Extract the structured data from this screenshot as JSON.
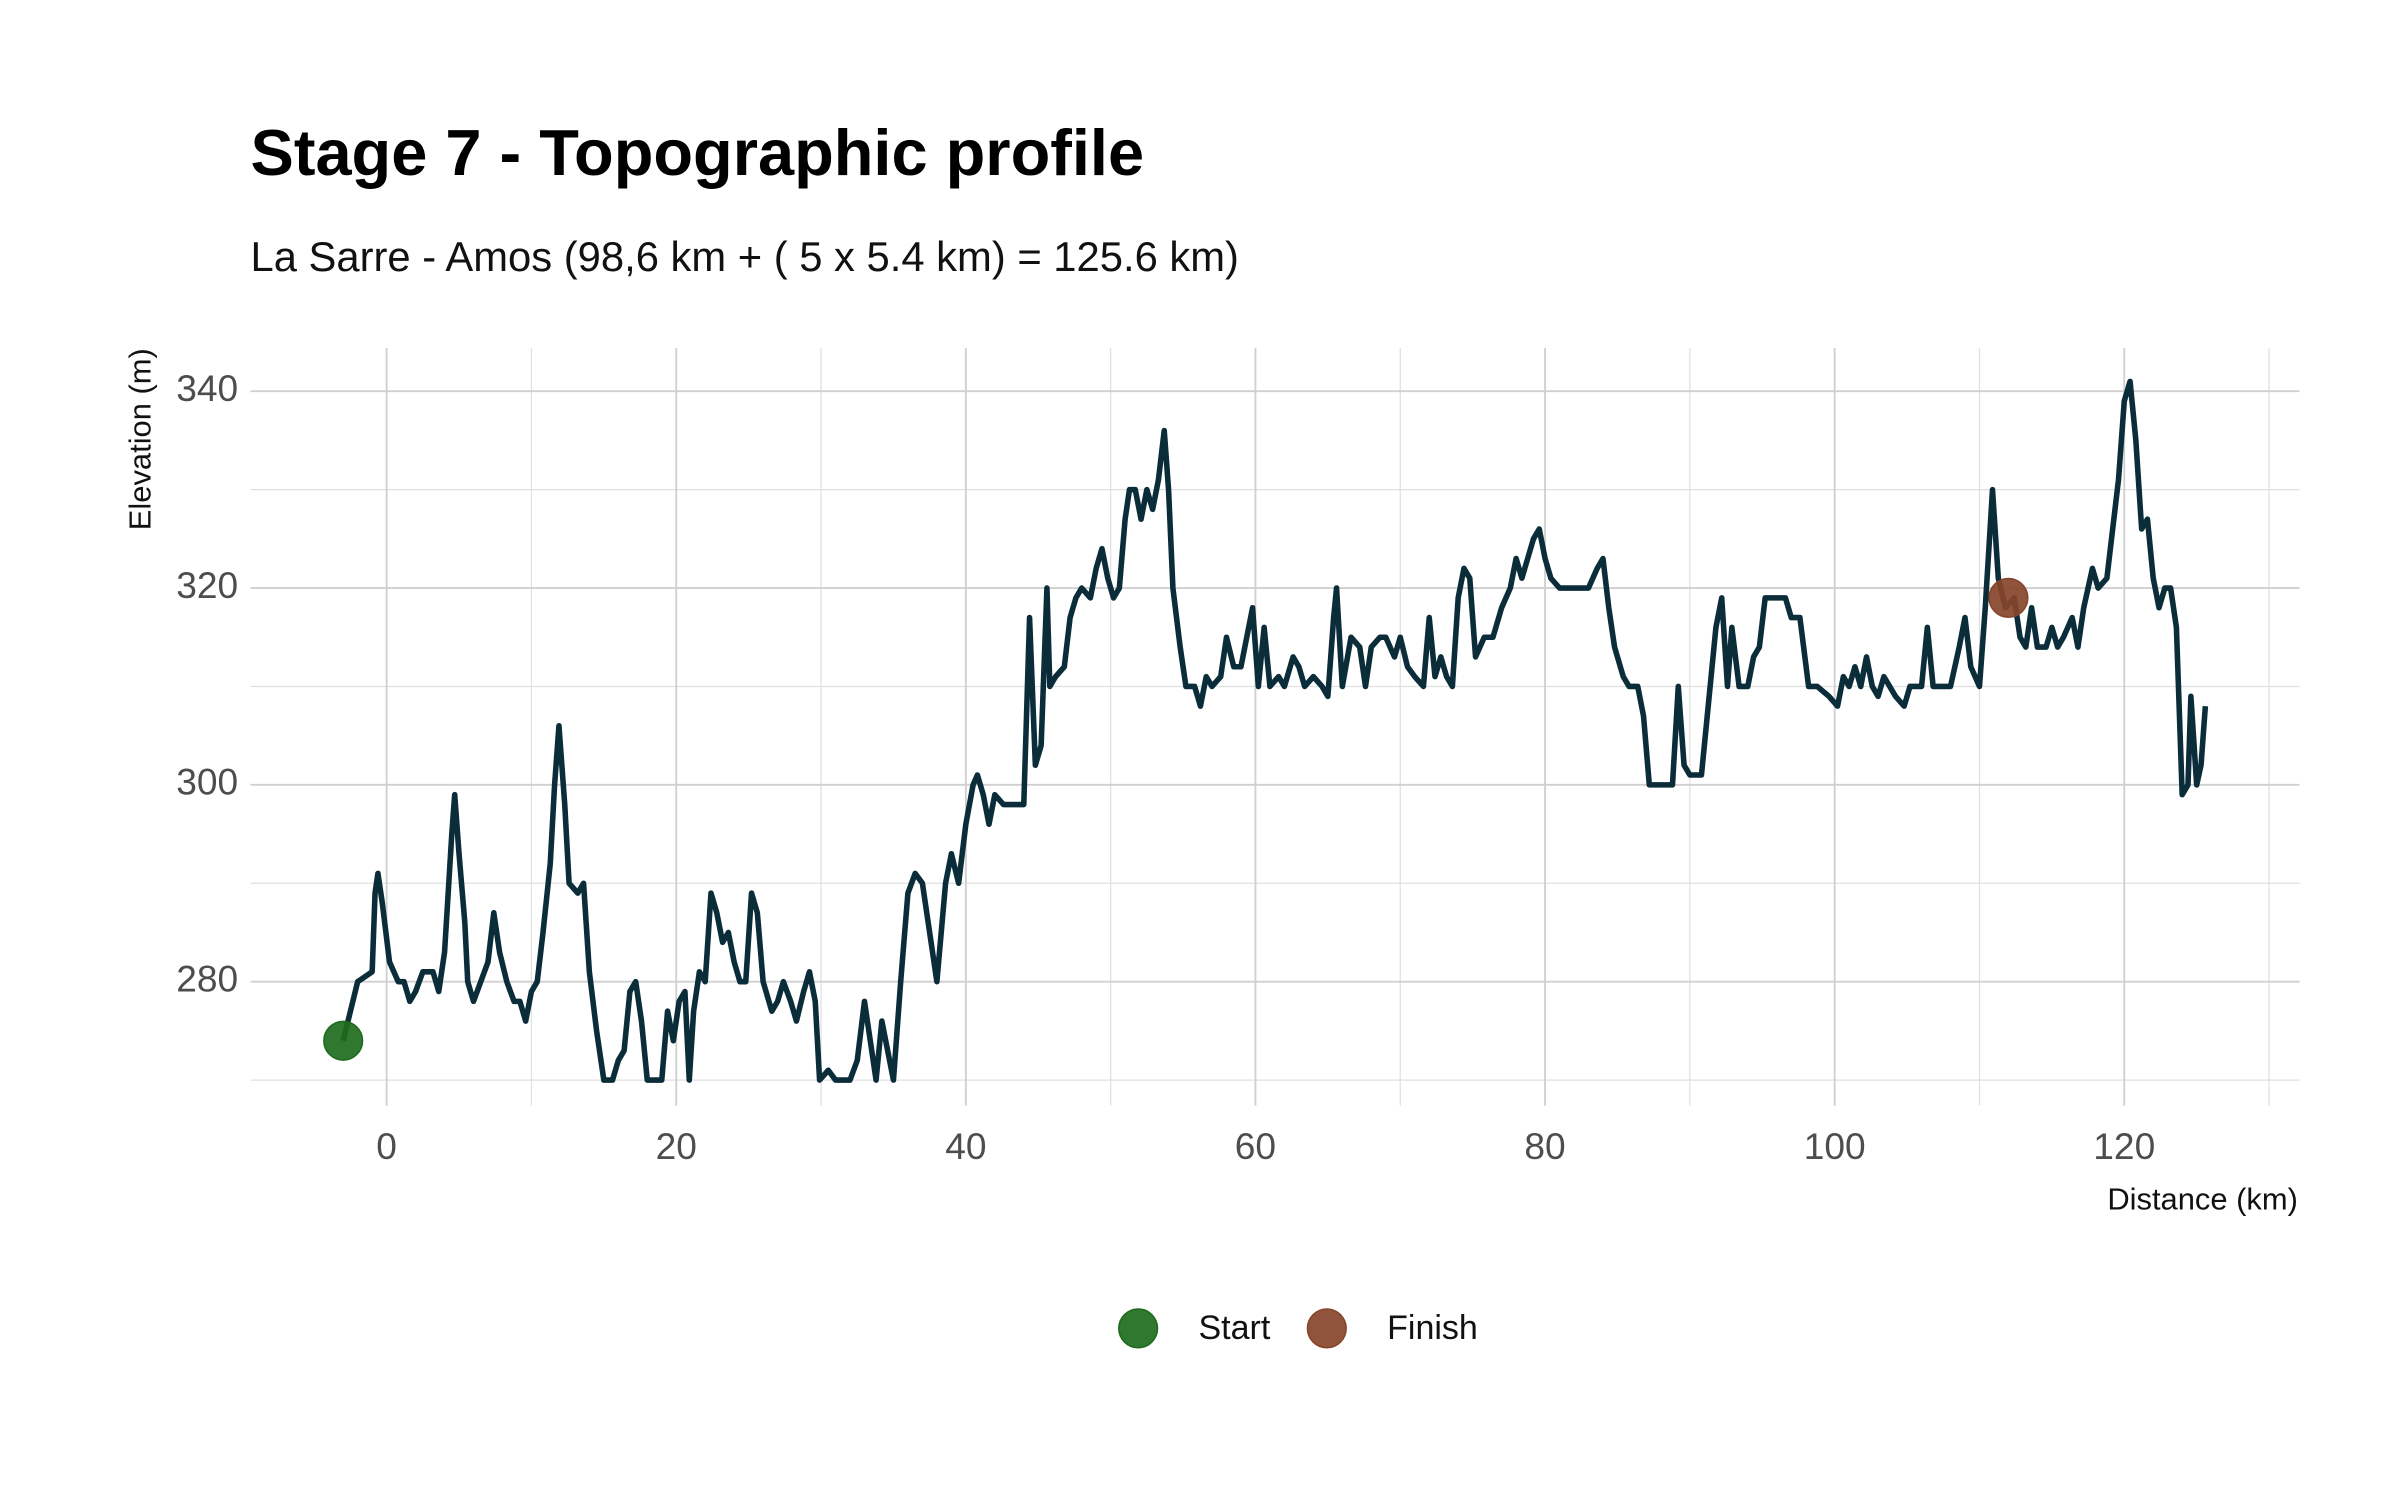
{
  "chart_data": {
    "type": "line",
    "title": "Stage 7 - Topographic profile",
    "subtitle": "La Sarre - Amos (98,6 km + ( 5 x 5.4 km) = 125.6 km)",
    "x_label": "Distance (km)",
    "y_label": "Elevation (m)",
    "color": "#0b2d3a",
    "xlim": [
      -9.4,
      132.1
    ],
    "ylim": [
      267.4,
      344.4
    ],
    "xticks": [
      0,
      20,
      40,
      60,
      80,
      100,
      120
    ],
    "yticks": [
      280,
      300,
      320,
      340
    ],
    "x_minor_ticks": [
      10,
      30,
      50,
      70,
      90,
      110,
      130
    ],
    "y_minor_ticks": [
      270,
      290,
      310,
      330
    ],
    "grid": true,
    "legend_position": "bottom",
    "x": [
      -3,
      -2.5,
      -2,
      -1,
      -0.8,
      -0.6,
      -0.3,
      0.2,
      0.8,
      1.2,
      1.6,
      2,
      2.5,
      3.2,
      3.6,
      4,
      4.5,
      4.7,
      5,
      5.4,
      5.6,
      6,
      6.5,
      7,
      7.4,
      7.8,
      8.3,
      8.8,
      9.2,
      9.6,
      10,
      10.4,
      10.8,
      11.3,
      11.6,
      11.9,
      12.3,
      12.6,
      13.2,
      13.6,
      14,
      14.5,
      15,
      15.6,
      16,
      16.4,
      16.8,
      17.2,
      17.6,
      18,
      19,
      19.4,
      19.8,
      20.2,
      20.6,
      20.9,
      21.2,
      21.6,
      22,
      22.4,
      22.8,
      23.2,
      23.6,
      24,
      24.4,
      24.8,
      25.2,
      25.6,
      26,
      26.6,
      27,
      27.4,
      27.9,
      28.3,
      28.8,
      29.2,
      29.6,
      29.9,
      30.5,
      31,
      32,
      32.5,
      33,
      33.4,
      33.8,
      34.2,
      34.6,
      35,
      35.5,
      36,
      36.5,
      37,
      37.5,
      38,
      38.6,
      39,
      39.5,
      40,
      40.5,
      40.8,
      41.2,
      41.6,
      42,
      42.6,
      43.2,
      43.6,
      44,
      44.4,
      44.8,
      45.2,
      45.6,
      45.8,
      46.2,
      46.8,
      47.2,
      47.6,
      48,
      48.6,
      49,
      49.4,
      49.8,
      50.2,
      50.6,
      51,
      51.3,
      51.7,
      52.1,
      52.5,
      52.9,
      53.3,
      53.7,
      54,
      54.3,
      54.8,
      55.2,
      55.8,
      56.2,
      56.6,
      57,
      57.6,
      58,
      58.5,
      59,
      59.4,
      59.8,
      60.2,
      60.6,
      61,
      61.6,
      62,
      62.6,
      63,
      63.4,
      64,
      64.6,
      65,
      65.4,
      65.6,
      66,
      66.6,
      67.2,
      67.6,
      68,
      68.6,
      69,
      69.6,
      70,
      70.5,
      71,
      71.6,
      72,
      72.4,
      72.8,
      73.2,
      73.6,
      74,
      74.4,
      74.8,
      75.2,
      75.8,
      76.4,
      77,
      77.6,
      78,
      78.4,
      78.8,
      79.2,
      79.6,
      80,
      80.4,
      81,
      82,
      83,
      83.6,
      84,
      84.4,
      84.8,
      85.4,
      85.8,
      86.4,
      86.8,
      87.2,
      88,
      88.8,
      89.2,
      89.6,
      90,
      90.8,
      91.4,
      91.8,
      92.2,
      92.6,
      92.9,
      93.4,
      94,
      94.4,
      94.8,
      95.2,
      95.8,
      96.6,
      97,
      97.6,
      98.2,
      98.8,
      99.6,
      100.2,
      100.6,
      101,
      101.4,
      101.8,
      102.2,
      102.6,
      103,
      103.4,
      103.8,
      104.2,
      104.8,
      105.2,
      105.6,
      106,
      106.4,
      106.8,
      107.2,
      107.6,
      108,
      108.6,
      109,
      109.4,
      110,
      110.4,
      110.9,
      111.3,
      111.8,
      112.4,
      112.8,
      113.2,
      113.6,
      114,
      114.6,
      115,
      115.4,
      115.8,
      116.4,
      116.8,
      117.2,
      117.8,
      118.2,
      118.8,
      119.2,
      119.6,
      120,
      120.4,
      120.8,
      121.2,
      121.6,
      122,
      122.4,
      122.8,
      123.2,
      123.6,
      124,
      124.4,
      124.6,
      125,
      125.3,
      125.6
    ],
    "values": [
      274,
      277,
      280,
      281,
      289,
      291,
      288,
      282,
      280,
      280,
      278,
      279,
      281,
      281,
      279,
      283,
      295,
      299,
      293,
      286,
      280,
      278,
      280,
      282,
      287,
      283,
      280,
      278,
      278,
      276,
      279,
      280,
      285,
      292,
      300,
      306,
      298,
      290,
      289,
      290,
      281,
      275,
      270,
      270,
      272,
      273,
      279,
      280,
      276,
      270,
      270,
      277,
      274,
      278,
      279,
      270,
      277,
      281,
      280,
      289,
      287,
      284,
      285,
      282,
      280,
      280,
      289,
      287,
      280,
      277,
      278,
      280,
      278,
      276,
      279,
      281,
      278,
      270,
      271,
      270,
      270,
      272,
      278,
      274,
      270,
      276,
      273,
      270,
      280,
      289,
      291,
      290,
      285,
      280,
      290,
      293,
      290,
      296,
      300,
      301,
      299,
      296,
      299,
      298,
      298,
      298,
      298,
      317,
      302,
      304,
      320,
      310,
      311,
      312,
      317,
      319,
      320,
      319,
      322,
      324,
      321,
      319,
      320,
      327,
      330,
      330,
      327,
      330,
      328,
      331,
      336,
      330,
      320,
      314,
      310,
      310,
      308,
      311,
      310,
      311,
      315,
      312,
      312,
      315,
      318,
      310,
      316,
      310,
      311,
      310,
      313,
      312,
      310,
      311,
      310,
      309,
      317,
      320,
      310,
      315,
      314,
      310,
      314,
      315,
      315,
      313,
      315,
      312,
      311,
      310,
      317,
      311,
      313,
      311,
      310,
      319,
      322,
      321,
      313,
      315,
      315,
      318,
      320,
      323,
      321,
      323,
      325,
      326,
      323,
      321,
      320,
      320,
      320,
      322,
      323,
      318,
      314,
      311,
      310,
      310,
      307,
      300,
      300,
      300,
      310,
      302,
      301,
      301,
      310,
      316,
      319,
      310,
      316,
      310,
      310,
      313,
      314,
      319,
      319,
      319,
      317,
      317,
      310,
      310,
      309,
      308,
      311,
      310,
      312,
      310,
      313,
      310,
      309,
      311,
      310,
      309,
      308,
      310,
      310,
      310,
      316,
      310,
      310,
      310,
      310,
      314,
      317,
      312,
      310,
      318,
      330,
      321,
      318,
      319,
      315,
      314,
      318,
      314,
      314,
      316,
      314,
      315,
      317,
      314,
      318,
      322,
      320,
      321,
      326,
      331,
      339,
      341,
      335,
      326,
      327,
      321,
      318,
      320,
      320,
      316,
      299,
      300,
      309,
      300,
      302,
      308
    ],
    "points": [
      {
        "name": "Start",
        "x": -3,
        "y": 274,
        "color": "#1e6b1e"
      },
      {
        "name": "Finish",
        "x": 112,
        "y": 319,
        "color": "#86452a"
      }
    ]
  }
}
